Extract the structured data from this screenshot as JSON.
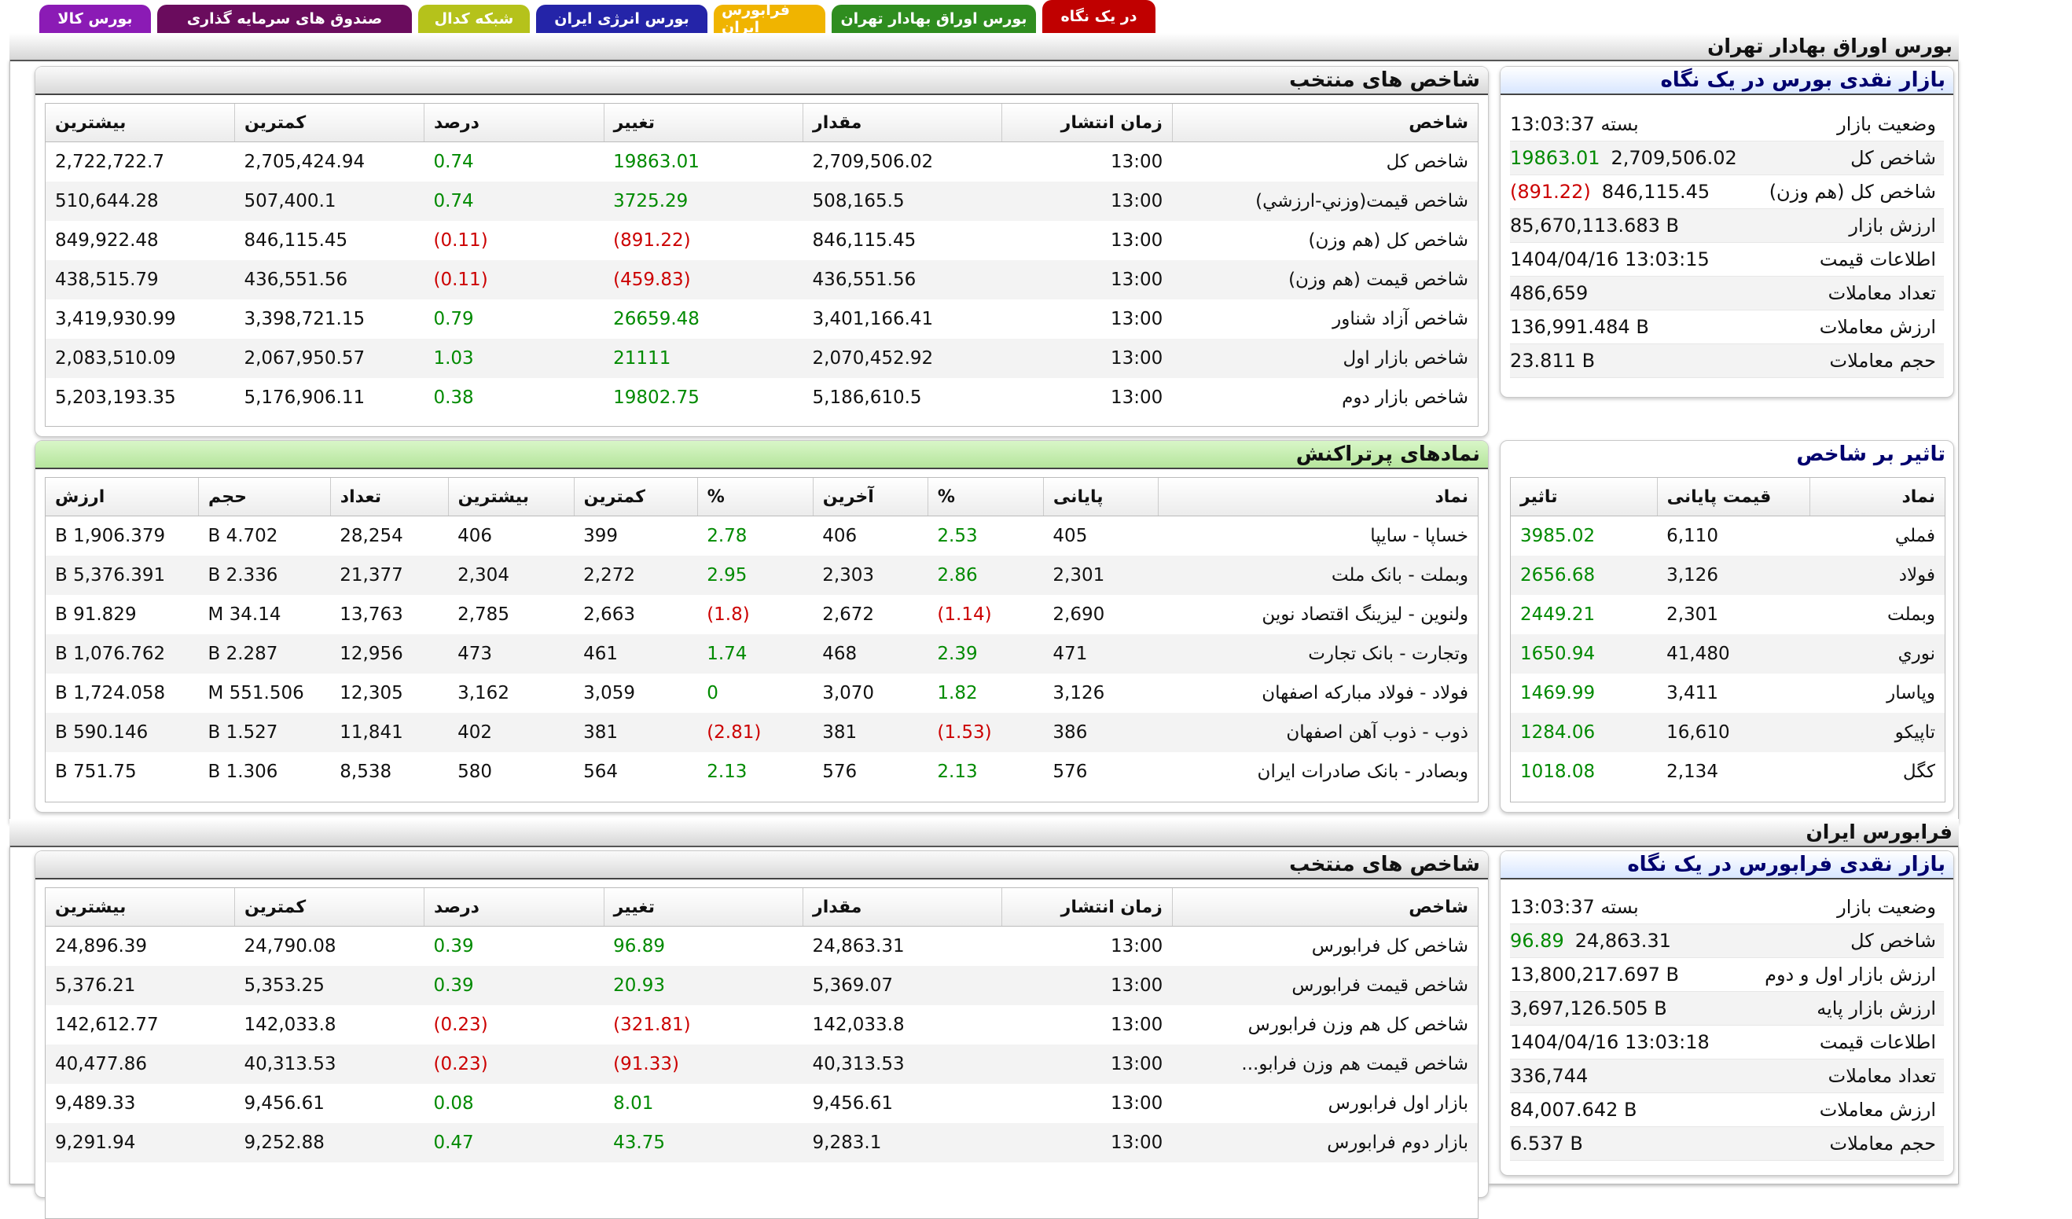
{
  "tabs": [
    {
      "label": "در یک نگاه",
      "color": "#c00000"
    },
    {
      "label": "بورس اوراق بهادار تهران",
      "color": "#2f8d1f"
    },
    {
      "label": "فرابورس ایران",
      "color": "#f0b400"
    },
    {
      "label": "بورس انرژی ایران",
      "color": "#2424a8"
    },
    {
      "label": "شبکه کدال",
      "color": "#b5c21b"
    },
    {
      "label": "صندوق های سرمایه گذاری",
      "color": "#6a0c5d"
    },
    {
      "label": "بورس کالا",
      "color": "#8b1bb5"
    }
  ],
  "tse": {
    "section_title": "بورس اوراق بهادار تهران",
    "glance": {
      "title": "بازار نقدی بورس در یک نگاه",
      "rows": [
        {
          "k": "وضعیت بازار",
          "v": "بسته 13:03:37",
          "c": ""
        },
        {
          "k": "شاخص کل",
          "v": "2,709,506.02",
          "c": "19863.01",
          "cc": "pos"
        },
        {
          "k": "شاخص کل (هم وزن)",
          "v": "846,115.45",
          "c": "(891.22)",
          "cc": "neg"
        },
        {
          "k": "ارزش بازار",
          "v": "85,670,113.683 B",
          "c": ""
        },
        {
          "k": "اطلاعات قیمت",
          "v": "1404/04/16 13:03:15",
          "c": ""
        },
        {
          "k": "تعداد معاملات",
          "v": "486,659",
          "c": ""
        },
        {
          "k": "ارزش معاملات",
          "v": "136,991.484 B",
          "c": ""
        },
        {
          "k": "حجم معاملات",
          "v": "23.811 B",
          "c": ""
        }
      ]
    },
    "indices": {
      "title": "شاخص های منتخب",
      "headers": [
        "شاخص",
        "زمان انتشار",
        "مقدار",
        "تغییر",
        "درصد",
        "کمترین",
        "بیشترین"
      ],
      "rows": [
        [
          "شاخص کل",
          "13:00",
          "2,709,506.02",
          "19863.01",
          "0.74",
          "2,705,424.94",
          "2,722,722.7"
        ],
        [
          "شاخص قیمت(وزني-ارزشي)",
          "13:00",
          "508,165.5",
          "3725.29",
          "0.74",
          "507,400.1",
          "510,644.28"
        ],
        [
          "شاخص کل (هم وزن)",
          "13:00",
          "846,115.45",
          "(891.22)",
          "(0.11)",
          "846,115.45",
          "849,922.48"
        ],
        [
          "شاخص قیمت (هم وزن)",
          "13:00",
          "436,551.56",
          "(459.83)",
          "(0.11)",
          "436,551.56",
          "438,515.79"
        ],
        [
          "شاخص آزاد شناور",
          "13:00",
          "3,401,166.41",
          "26659.48",
          "0.79",
          "3,398,721.15",
          "3,419,930.99"
        ],
        [
          "شاخص بازار اول",
          "13:00",
          "2,070,452.92",
          "21111",
          "1.03",
          "2,067,950.57",
          "2,083,510.09"
        ],
        [
          "شاخص بازار دوم",
          "13:00",
          "5,186,610.5",
          "19802.75",
          "0.38",
          "5,176,906.11",
          "5,203,193.35"
        ]
      ]
    },
    "impact": {
      "title": "تاثیر بر شاخص",
      "headers": [
        "نماد",
        "قیمت پایانی",
        "تاثیر"
      ],
      "rows": [
        [
          "فملي",
          "6,110",
          "3985.02"
        ],
        [
          "فولاد",
          "3,126",
          "2656.68"
        ],
        [
          "وبملت",
          "2,301",
          "2449.21"
        ],
        [
          "نوري",
          "41,480",
          "1650.94"
        ],
        [
          "وپاسار",
          "3,411",
          "1469.99"
        ],
        [
          "تاپيكو",
          "16,610",
          "1284.06"
        ],
        [
          "كگل",
          "2,134",
          "1018.08"
        ]
      ]
    },
    "active": {
      "title": "نمادهای پرتراکنش",
      "headers": [
        "نماد",
        "پایانی",
        "%",
        "آخرین",
        "%",
        "کمترین",
        "بیشترین",
        "تعداد",
        "حجم",
        "ارزش"
      ],
      "rows": [
        [
          "خساپا - سايپا",
          "405",
          "2.53",
          "406",
          "2.78",
          "399",
          "406",
          "28,254",
          "4.702 B",
          "1,906.379 B"
        ],
        [
          "وبملت - بانک ملت",
          "2,301",
          "2.86",
          "2,303",
          "2.95",
          "2,272",
          "2,304",
          "21,377",
          "2.336 B",
          "5,376.391 B"
        ],
        [
          "ولنوین - لیزینگ اقتصاد نوین",
          "2,690",
          "(1.14)",
          "2,672",
          "(1.8)",
          "2,663",
          "2,785",
          "13,763",
          "34.14 M",
          "91.829 B"
        ],
        [
          "وتجارت - بانک تجارت",
          "471",
          "2.39",
          "468",
          "1.74",
          "461",
          "473",
          "12,956",
          "2.287 B",
          "1,076.762 B"
        ],
        [
          "فولاد - فولاد مبارکه اصفهان",
          "3,126",
          "1.82",
          "3,070",
          "0",
          "3,059",
          "3,162",
          "12,305",
          "551.506 M",
          "1,724.058 B"
        ],
        [
          "ذوب - ذوب آهن اصفهان",
          "386",
          "(1.53)",
          "381",
          "(2.81)",
          "381",
          "402",
          "11,841",
          "1.527 B",
          "590.146 B"
        ],
        [
          "وبصادر - بانک صادرات ایران",
          "576",
          "2.13",
          "576",
          "2.13",
          "564",
          "580",
          "8,538",
          "1.306 B",
          "751.75 B"
        ]
      ]
    }
  },
  "ifb": {
    "section_title": "فرابورس ایران",
    "glance": {
      "title": "بازار نقدی فرابورس در یک نگاه",
      "rows": [
        {
          "k": "وضعیت بازار",
          "v": "بسته 13:03:37",
          "c": ""
        },
        {
          "k": "شاخص کل",
          "v": "24,863.31",
          "c": "96.89",
          "cc": "pos"
        },
        {
          "k": "ارزش بازار اول و دوم",
          "v": "13,800,217.697 B",
          "c": ""
        },
        {
          "k": "ارزش بازار پایه",
          "v": "3,697,126.505 B",
          "c": ""
        },
        {
          "k": "اطلاعات قیمت",
          "v": "1404/04/16 13:03:18",
          "c": ""
        },
        {
          "k": "تعداد معاملات",
          "v": "336,744",
          "c": ""
        },
        {
          "k": "ارزش معاملات",
          "v": "84,007.642 B",
          "c": ""
        },
        {
          "k": "حجم معاملات",
          "v": "6.537 B",
          "c": ""
        }
      ]
    },
    "indices": {
      "title": "شاخص های منتخب",
      "headers": [
        "شاخص",
        "زمان انتشار",
        "مقدار",
        "تغییر",
        "درصد",
        "کمترین",
        "بیشترین"
      ],
      "rows": [
        [
          "شاخص کل فرابورس",
          "13:00",
          "24,863.31",
          "96.89",
          "0.39",
          "24,790.08",
          "24,896.39"
        ],
        [
          "شاخص قیمت فرابورس",
          "13:00",
          "5,369.07",
          "20.93",
          "0.39",
          "5,353.25",
          "5,376.21"
        ],
        [
          "شاخص کل هم وزن فرابورس",
          "13:00",
          "142,033.8",
          "(321.81)",
          "(0.23)",
          "142,033.8",
          "142,612.77"
        ],
        [
          "شاخص قیمت هم وزن فرابو...",
          "13:00",
          "40,313.53",
          "(91.33)",
          "(0.23)",
          "40,313.53",
          "40,477.86"
        ],
        [
          "بازار اول فرابورس",
          "13:00",
          "9,456.61",
          "8.01",
          "0.08",
          "9,456.61",
          "9,489.33"
        ],
        [
          "بازار دوم فرابورس",
          "13:00",
          "9,283.1",
          "43.75",
          "0.47",
          "9,252.88",
          "9,291.94"
        ]
      ]
    }
  }
}
